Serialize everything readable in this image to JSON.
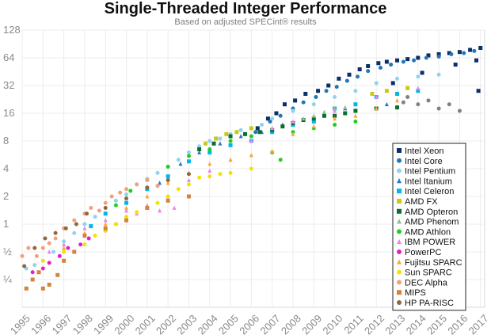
{
  "chart_data": {
    "type": "scatter",
    "title": "Single-Threaded Integer Performance",
    "subtitle": "Based on adjusted SPECint® results",
    "xlabel": "",
    "ylabel": "",
    "y_scale": "log2",
    "xlim": [
      1995,
      2017.2
    ],
    "ylim": [
      0.125,
      128
    ],
    "x_ticks": [
      "1995",
      "1996",
      "1997",
      "1998",
      "1999",
      "2000",
      "2001",
      "2002",
      "2003",
      "2004",
      "2005",
      "2006",
      "2007",
      "2008",
      "2009",
      "2010",
      "2011",
      "2012",
      "2013",
      "2014",
      "2015",
      "2016",
      "2017"
    ],
    "y_ticks": [
      {
        "value": 0.25,
        "label": "¼"
      },
      {
        "value": 0.5,
        "label": "½"
      },
      {
        "value": 1,
        "label": "1"
      },
      {
        "value": 2,
        "label": "2"
      },
      {
        "value": 4,
        "label": "4"
      },
      {
        "value": 8,
        "label": "8"
      },
      {
        "value": 16,
        "label": "16"
      },
      {
        "value": 32,
        "label": "32"
      },
      {
        "value": 64,
        "label": "64"
      },
      {
        "value": 128,
        "label": "128"
      }
    ],
    "grid": true,
    "legend_position": "right",
    "series": [
      {
        "name": "Intel Xeon",
        "color": "#0b2f6b",
        "marker": "square",
        "points": [
          [
            2006.3,
            11
          ],
          [
            2006.8,
            14
          ],
          [
            2007.2,
            16
          ],
          [
            2007.6,
            20
          ],
          [
            2008.1,
            22
          ],
          [
            2008.6,
            26
          ],
          [
            2009.2,
            28
          ],
          [
            2009.7,
            32
          ],
          [
            2010.2,
            38
          ],
          [
            2010.7,
            42
          ],
          [
            2011.2,
            48
          ],
          [
            2011.6,
            52
          ],
          [
            2012.1,
            56
          ],
          [
            2012.5,
            58
          ],
          [
            2013.0,
            60
          ],
          [
            2013.5,
            62
          ],
          [
            2014.0,
            64
          ],
          [
            2014.5,
            68
          ],
          [
            2015.0,
            70
          ],
          [
            2015.5,
            72
          ],
          [
            2016.0,
            74
          ],
          [
            2016.5,
            78
          ],
          [
            2017.0,
            82
          ],
          [
            2012.8,
            34
          ],
          [
            2014.2,
            44
          ],
          [
            2015.8,
            54
          ],
          [
            2016.8,
            60
          ],
          [
            2016.9,
            28
          ]
        ]
      },
      {
        "name": "Intel Core",
        "color": "#1f78b4",
        "marker": "circle",
        "points": [
          [
            2006.2,
            10
          ],
          [
            2006.9,
            13
          ],
          [
            2007.4,
            15
          ],
          [
            2008.0,
            18
          ],
          [
            2008.5,
            21
          ],
          [
            2009.1,
            24
          ],
          [
            2009.6,
            28
          ],
          [
            2010.1,
            31
          ],
          [
            2010.6,
            36
          ],
          [
            2011.1,
            40
          ],
          [
            2011.6,
            46
          ],
          [
            2012.2,
            50
          ],
          [
            2012.7,
            54
          ],
          [
            2013.3,
            58
          ],
          [
            2013.8,
            60
          ],
          [
            2014.4,
            64
          ],
          [
            2015.0,
            66
          ],
          [
            2015.6,
            70
          ],
          [
            2016.2,
            72
          ],
          [
            2016.7,
            76
          ]
        ]
      },
      {
        "name": "Intel Pentium",
        "color": "#8fd3ee",
        "marker": "circle",
        "points": [
          [
            1995.2,
            0.33
          ],
          [
            1995.6,
            0.36
          ],
          [
            1996.0,
            0.4
          ],
          [
            1996.5,
            0.5
          ],
          [
            1997.0,
            0.65
          ],
          [
            1997.5,
            0.8
          ],
          [
            1998.0,
            1.0
          ],
          [
            1998.5,
            1.2
          ],
          [
            1999.0,
            1.5
          ],
          [
            1999.5,
            1.8
          ],
          [
            2000.0,
            2.1
          ],
          [
            2000.5,
            2.7
          ],
          [
            2001.0,
            3.1
          ],
          [
            2001.5,
            3.6
          ],
          [
            2002.0,
            4.2
          ],
          [
            2002.5,
            5.0
          ],
          [
            2003.0,
            6.0
          ],
          [
            2003.5,
            7.0
          ],
          [
            2004.0,
            8.0
          ],
          [
            2004.5,
            8.5
          ],
          [
            2005.0,
            9.5
          ],
          [
            2005.5,
            10.5
          ],
          [
            2006.0,
            11.0
          ],
          [
            2006.5,
            12.0
          ],
          [
            2007.0,
            14.0
          ],
          [
            2008.0,
            17.0
          ],
          [
            2009.0,
            20.0
          ],
          [
            2010.0,
            24.0
          ],
          [
            2011.0,
            28.0
          ],
          [
            2012.0,
            34.0
          ],
          [
            2013.0,
            38.0
          ],
          [
            2014.0,
            40.0
          ],
          [
            2015.0,
            42.0
          ]
        ]
      },
      {
        "name": "Intel Itanium",
        "color": "#2878c8",
        "marker": "triangle",
        "points": [
          [
            2001.6,
            2.8
          ],
          [
            2002.6,
            4.5
          ],
          [
            2003.5,
            6.0
          ],
          [
            2004.5,
            7.5
          ],
          [
            2005.5,
            9.0
          ],
          [
            2006.5,
            10.0
          ],
          [
            2007.5,
            12.0
          ],
          [
            2010.5,
            18.0
          ],
          [
            2012.5,
            20.0
          ]
        ]
      },
      {
        "name": "Intel Celeron",
        "color": "#00b7eb",
        "marker": "square",
        "points": [
          [
            1998.3,
            0.95
          ],
          [
            1999.0,
            1.3
          ],
          [
            2000.0,
            1.7
          ],
          [
            2001.0,
            2.4
          ],
          [
            2002.0,
            3.3
          ],
          [
            2003.0,
            4.8
          ],
          [
            2004.0,
            6.0
          ],
          [
            2005.0,
            7.2
          ],
          [
            2006.0,
            8.0
          ],
          [
            2007.0,
            10.0
          ],
          [
            2008.0,
            12.0
          ],
          [
            2009.0,
            13.0
          ],
          [
            2010.0,
            18.0
          ],
          [
            2011.0,
            20.0
          ],
          [
            2012.0,
            24.0
          ],
          [
            2013.0,
            26.0
          ],
          [
            2014.0,
            28.0
          ]
        ]
      },
      {
        "name": "AMD FX",
        "color": "#c9c916",
        "marker": "square",
        "points": [
          [
            2003.8,
            7.5
          ],
          [
            2004.3,
            8.5
          ],
          [
            2004.8,
            9.5
          ],
          [
            2005.3,
            10.0
          ],
          [
            2006.0,
            11.0
          ],
          [
            2011.8,
            26.0
          ],
          [
            2012.5,
            28.0
          ],
          [
            2013.5,
            30.0
          ]
        ]
      },
      {
        "name": "AMD Opteron",
        "color": "#0a6e2e",
        "marker": "square",
        "points": [
          [
            2003.5,
            6.5
          ],
          [
            2004.2,
            7.5
          ],
          [
            2005.0,
            9.0
          ],
          [
            2005.7,
            9.5
          ],
          [
            2006.4,
            10.0
          ],
          [
            2007.0,
            10.5
          ],
          [
            2007.5,
            11.5
          ],
          [
            2008.0,
            12.5
          ],
          [
            2008.5,
            13.5
          ],
          [
            2009.0,
            14.0
          ],
          [
            2009.5,
            15.0
          ],
          [
            2010.0,
            15.0
          ],
          [
            2010.5,
            16.0
          ],
          [
            2011.0,
            17.0
          ],
          [
            2012.0,
            18.0
          ],
          [
            2013.0,
            18.5
          ]
        ]
      },
      {
        "name": "AMD Phenom",
        "color": "#8fbf8f",
        "marker": "triangle",
        "points": [
          [
            2008.0,
            13.0
          ],
          [
            2008.5,
            14.0
          ],
          [
            2009.0,
            15.0
          ],
          [
            2009.5,
            16.5
          ],
          [
            2010.0,
            18.0
          ],
          [
            2010.5,
            18.5
          ]
        ]
      },
      {
        "name": "AMD Athlon",
        "color": "#1fcf1f",
        "marker": "circle",
        "points": [
          [
            1999.5,
            1.6
          ],
          [
            2000.2,
            2.3
          ],
          [
            2001.0,
            3.0
          ],
          [
            2002.0,
            4.2
          ],
          [
            2003.0,
            5.5
          ],
          [
            2004.0,
            6.5
          ],
          [
            2005.0,
            8.0
          ],
          [
            2006.0,
            9.0
          ],
          [
            2007.0,
            6.0
          ],
          [
            2007.4,
            5.0
          ],
          [
            2008.0,
            10.0
          ],
          [
            2009.0,
            11.0
          ],
          [
            2010.0,
            12.0
          ],
          [
            2011.0,
            13.0
          ]
        ]
      },
      {
        "name": "IBM POWER",
        "color": "#ee82ee",
        "marker": "triangle",
        "points": [
          [
            1996.3,
            0.5
          ],
          [
            1997.0,
            0.6
          ],
          [
            1998.0,
            0.9
          ],
          [
            1999.0,
            1.1
          ],
          [
            2000.0,
            1.4
          ],
          [
            2000.5,
            1.3
          ],
          [
            2001.0,
            1.6
          ],
          [
            2001.6,
            1.4
          ],
          [
            2002.0,
            2.0
          ],
          [
            2002.3,
            1.5
          ],
          [
            2003.0,
            3.0
          ],
          [
            2004.0,
            3.8
          ],
          [
            2005.0,
            5.0
          ],
          [
            2006.0,
            8.0
          ],
          [
            2007.0,
            11.0
          ],
          [
            2008.0,
            13.0
          ],
          [
            2010.0,
            17.0
          ],
          [
            2012.0,
            24.0
          ],
          [
            2014.0,
            30.0
          ]
        ]
      },
      {
        "name": "PowerPC",
        "color": "#e020c8",
        "marker": "circle",
        "points": [
          [
            1995.5,
            0.3
          ],
          [
            1996.0,
            0.33
          ],
          [
            1996.3,
            0.38
          ],
          [
            1996.8,
            0.45
          ],
          [
            1997.2,
            0.55
          ],
          [
            1997.8,
            0.6
          ],
          [
            1998.2,
            0.7
          ],
          [
            1999.0,
            0.85
          ],
          [
            1999.5,
            1.0
          ],
          [
            2000.0,
            1.1
          ]
        ]
      },
      {
        "name": "Fujitsu SPARC",
        "color": "#f8a838",
        "marker": "triangle",
        "points": [
          [
            1997.0,
            0.55
          ],
          [
            1998.0,
            0.8
          ],
          [
            1999.0,
            1.0
          ],
          [
            2000.0,
            1.5
          ],
          [
            2001.0,
            2.0
          ],
          [
            2002.0,
            2.8
          ],
          [
            2003.0,
            3.6
          ],
          [
            2004.0,
            4.5
          ],
          [
            2005.0,
            5.0
          ],
          [
            2006.0,
            5.6
          ],
          [
            2007.0,
            6.2
          ],
          [
            2008.0,
            9.5
          ],
          [
            2009.0,
            11.5
          ],
          [
            2010.0,
            14.0
          ],
          [
            2011.0,
            15.0
          ],
          [
            2012.0,
            18.0
          ],
          [
            2013.0,
            22.0
          ]
        ]
      },
      {
        "name": "Sun SPARC",
        "color": "#f2e400",
        "marker": "circle",
        "points": [
          [
            1996.0,
            0.4
          ],
          [
            1997.0,
            0.5
          ],
          [
            1998.0,
            0.6
          ],
          [
            1998.5,
            0.75
          ],
          [
            1999.0,
            0.85
          ],
          [
            1999.5,
            1.0
          ],
          [
            2000.0,
            1.2
          ],
          [
            2000.5,
            1.35
          ],
          [
            2001.0,
            1.5
          ],
          [
            2001.5,
            1.7
          ],
          [
            2002.0,
            2.0
          ],
          [
            2002.5,
            2.4
          ],
          [
            2003.0,
            2.7
          ],
          [
            2003.5,
            3.2
          ],
          [
            2004.0,
            3.3
          ],
          [
            2004.5,
            3.5
          ],
          [
            2005.0,
            3.6
          ],
          [
            2006.0,
            4.0
          ]
        ]
      },
      {
        "name": "DEC Alpha",
        "color": "#f3a07e",
        "marker": "circle",
        "points": [
          [
            1995.0,
            0.45
          ],
          [
            1995.3,
            0.55
          ],
          [
            1995.7,
            0.45
          ],
          [
            1996.0,
            0.55
          ],
          [
            1996.3,
            0.62
          ],
          [
            1996.6,
            0.7
          ],
          [
            1997.0,
            0.9
          ],
          [
            1997.5,
            1.1
          ],
          [
            1998.0,
            1.3
          ],
          [
            1998.3,
            1.5
          ],
          [
            1998.7,
            1.4
          ],
          [
            1999.0,
            1.7
          ],
          [
            1999.3,
            2.0
          ],
          [
            1999.7,
            2.2
          ],
          [
            2000.0,
            2.4
          ],
          [
            2000.5,
            2.7
          ],
          [
            2001.0,
            3.0
          ],
          [
            2001.5,
            2.6
          ]
        ]
      },
      {
        "name": "MIPS",
        "color": "#d3843e",
        "marker": "square",
        "points": [
          [
            1995.2,
            0.2
          ],
          [
            1995.5,
            0.25
          ],
          [
            1995.8,
            0.3
          ],
          [
            1996.0,
            0.2
          ],
          [
            1996.3,
            0.22
          ],
          [
            1996.7,
            0.28
          ],
          [
            1997.0,
            0.4
          ],
          [
            1997.5,
            0.5
          ],
          [
            1998.0,
            0.75
          ],
          [
            1999.0,
            0.9
          ],
          [
            2000.0,
            1.1
          ],
          [
            2001.0,
            1.5
          ],
          [
            2002.0,
            1.8
          ],
          [
            2003.0,
            2.0
          ]
        ]
      },
      {
        "name": "HP PA-RISC",
        "color": "#8c6a3c",
        "marker": "circle",
        "points": [
          [
            1995.1,
            0.35
          ],
          [
            1995.6,
            0.55
          ],
          [
            1996.1,
            0.7
          ],
          [
            1996.6,
            0.8
          ],
          [
            1997.1,
            0.9
          ],
          [
            1997.6,
            1.0
          ],
          [
            1998.1,
            1.3
          ],
          [
            1999.0,
            1.5
          ],
          [
            2000.0,
            1.9
          ],
          [
            2001.0,
            2.5
          ],
          [
            2002.0,
            3.0
          ],
          [
            2003.0,
            3.5
          ]
        ]
      },
      {
        "name": "",
        "color": "#808080",
        "marker": "circle",
        "points": [
          [
            2013.3,
            21.0
          ],
          [
            2013.5,
            24.0
          ],
          [
            2014.0,
            20.0
          ],
          [
            2014.5,
            22.0
          ],
          [
            2015.0,
            18.0
          ],
          [
            2015.5,
            20.0
          ],
          [
            2016.0,
            17.0
          ]
        ]
      }
    ]
  }
}
